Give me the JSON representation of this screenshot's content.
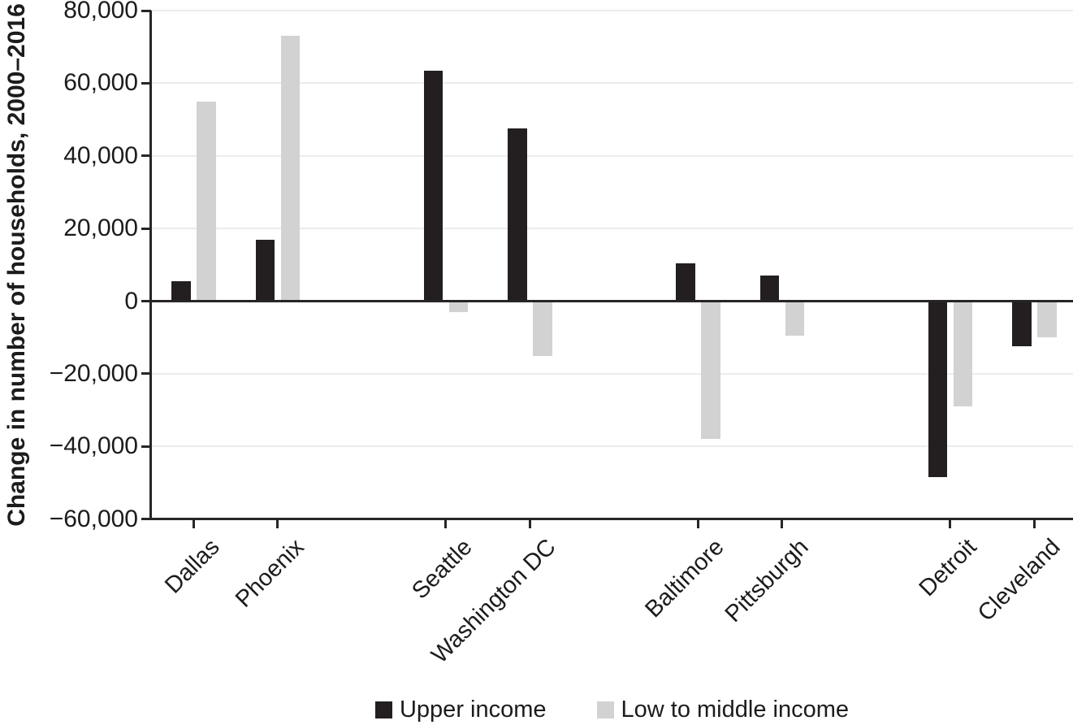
{
  "chart_data": {
    "type": "bar",
    "title": "",
    "ylabel": "Change in number of households, 2000–2016",
    "xlabel": "",
    "categories": [
      "Dallas",
      "Phoenix",
      "Seattle",
      "Washington DC",
      "Baltimore",
      "Pittsburgh",
      "Detroit",
      "Cleveland"
    ],
    "series": [
      {
        "name": "Upper income",
        "color": "#231f20",
        "values": [
          5500,
          17000,
          63500,
          47500,
          10500,
          7000,
          -48500,
          -12500
        ]
      },
      {
        "name": "Low to middle income",
        "color": "#d2d2d2",
        "values": [
          55000,
          73000,
          -3000,
          -15000,
          -38000,
          -9500,
          -29000,
          -10000
        ]
      }
    ],
    "ylim": [
      -60000,
      80000
    ],
    "ytick_step": 20000,
    "ytick_labels": [
      "80,000",
      "60,000",
      "40,000",
      "20,000",
      "0",
      "−20,000",
      "−40,000",
      "−60,000"
    ],
    "ytick_values": [
      80000,
      60000,
      40000,
      20000,
      0,
      -20000,
      -40000,
      -60000
    ],
    "grid": "horizontal",
    "legend_position": "bottom-center",
    "category_groups": [
      [
        "Dallas",
        "Phoenix"
      ],
      [
        "Seattle",
        "Washington DC"
      ],
      [
        "Baltimore",
        "Pittsburgh"
      ],
      [
        "Detroit",
        "Cleveland"
      ]
    ],
    "slots": [
      0,
      1,
      3,
      4,
      6,
      7,
      9,
      10
    ],
    "total_slots": 11
  },
  "colors": {
    "axis": "#272525",
    "gridline": "#ececec",
    "text": "#1d1b1c",
    "background": "#ffffff"
  }
}
